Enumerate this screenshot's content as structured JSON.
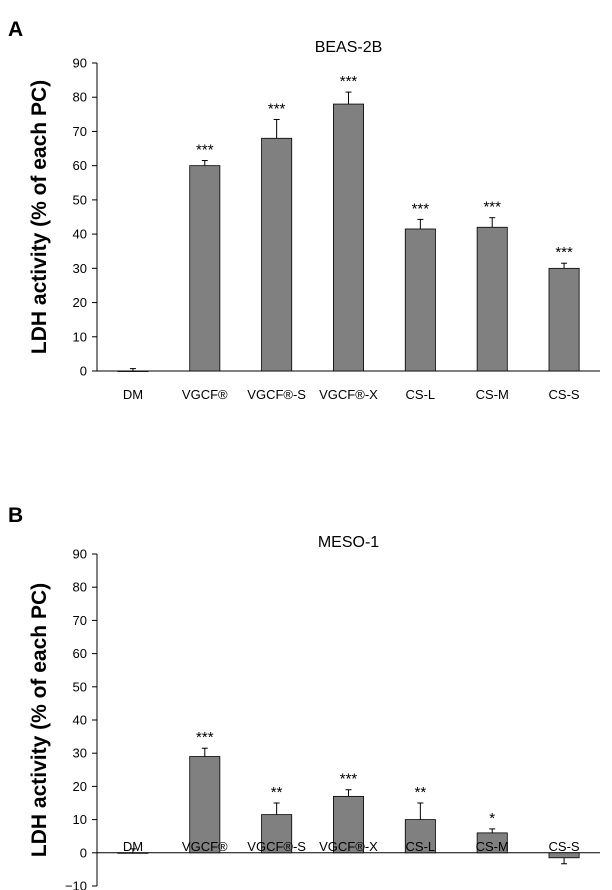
{
  "chart_data": [
    {
      "type": "bar",
      "panel_label": "A",
      "title": "BEAS-2B",
      "ylabel": "LDH activity (% of each PC)",
      "xlabel": "",
      "ylim": [
        0,
        90
      ],
      "yticks": [
        0,
        10,
        20,
        30,
        40,
        50,
        60,
        70,
        80,
        90
      ],
      "ytick_labels": [
        "0",
        "10",
        "20",
        "30",
        "40",
        "50",
        "60",
        "70",
        "80",
        "90"
      ],
      "categories": [
        "DM",
        "VGCF®",
        "VGCF®-S",
        "VGCF®-X",
        "CS-L",
        "CS-M",
        "CS-S"
      ],
      "values": [
        0,
        60,
        68,
        78,
        41.5,
        42,
        30
      ],
      "errors": [
        0.7,
        1.5,
        5.5,
        3.5,
        2.8,
        2.8,
        1.5
      ],
      "significance": [
        "",
        "***",
        "***",
        "***",
        "***",
        "***",
        "***"
      ],
      "bar_color": "#808080",
      "grid": false
    },
    {
      "type": "bar",
      "panel_label": "B",
      "title": "MESO-1",
      "ylabel": "LDH activity (% of each PC)",
      "xlabel": "",
      "ylim": [
        -10,
        90
      ],
      "yticks": [
        -10,
        0,
        10,
        20,
        30,
        40,
        50,
        60,
        70,
        80,
        90
      ],
      "ytick_labels": [
        "−10",
        "0",
        "10",
        "20",
        "30",
        "40",
        "50",
        "60",
        "70",
        "80",
        "90"
      ],
      "categories": [
        "DM",
        "VGCF®",
        "VGCF®-S",
        "VGCF®-X",
        "CS-L",
        "CS-M",
        "CS-S"
      ],
      "values": [
        0,
        29,
        11.5,
        17,
        10,
        6,
        -1.5
      ],
      "errors": [
        1.2,
        2.5,
        3.5,
        2,
        5,
        1.2,
        1.8
      ],
      "significance": [
        "",
        "***",
        "**",
        "***",
        "**",
        "*",
        ""
      ],
      "bar_color": "#808080",
      "grid": false
    }
  ]
}
